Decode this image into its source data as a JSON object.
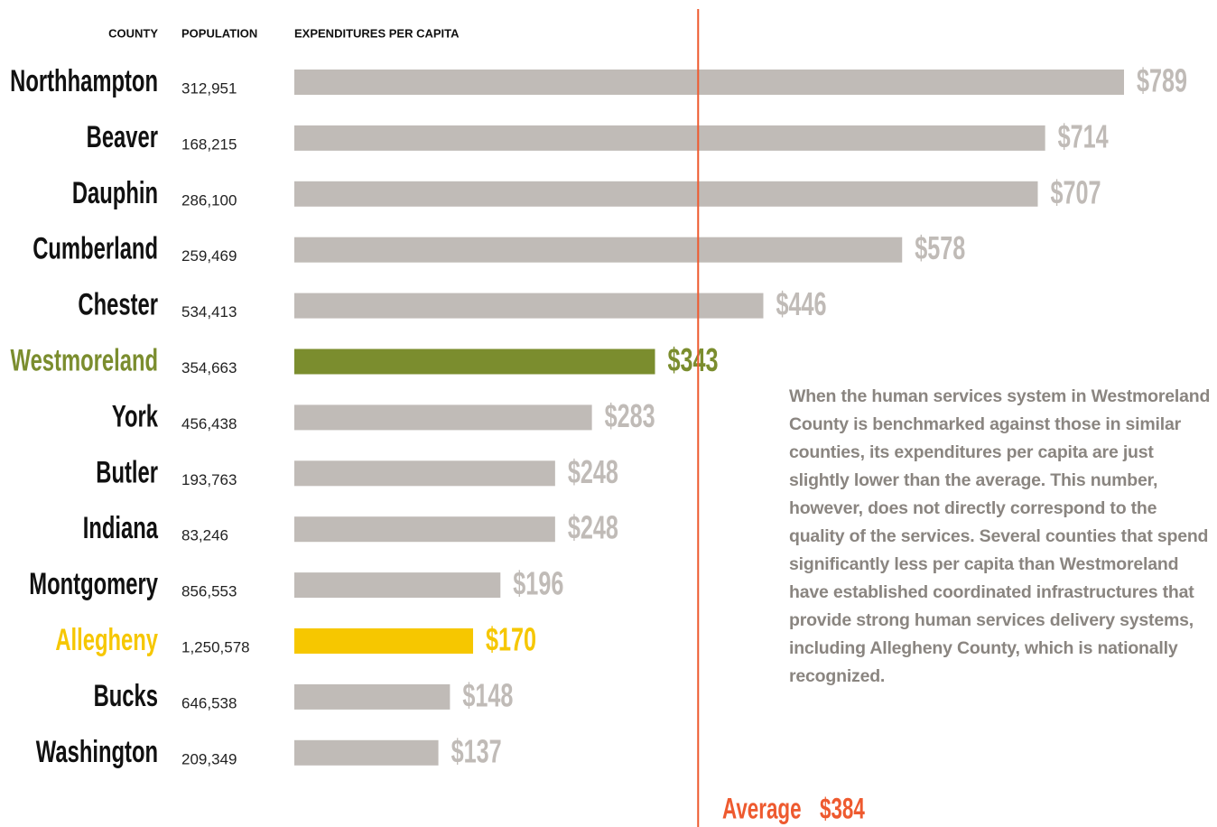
{
  "chart_data": {
    "type": "bar",
    "orientation": "horizontal",
    "column_headers": [
      "COUNTY",
      "POPULATION",
      "EXPENDITURES PER CAPITA"
    ],
    "categories": [
      "Northhampton",
      "Beaver",
      "Dauphin",
      "Cumberland",
      "Chester",
      "Westmoreland",
      "York",
      "Butler",
      "Indiana",
      "Montgomery",
      "Allegheny",
      "Bucks",
      "Washington"
    ],
    "population": [
      "312,951",
      "168,215",
      "286,100",
      "259,469",
      "534,413",
      "354,663",
      "456,438",
      "193,763",
      "83,246",
      "856,553",
      "1,250,578",
      "646,538",
      "209,349"
    ],
    "values": [
      789,
      714,
      707,
      578,
      446,
      343,
      283,
      248,
      248,
      196,
      170,
      148,
      137
    ],
    "value_labels": [
      "$789",
      "$714",
      "$707",
      "$578",
      "$446",
      "$343",
      "$283",
      "$248",
      "$248",
      "$196",
      "$170",
      "$148",
      "$137"
    ],
    "colors": [
      "#c0bbb7",
      "#c0bbb7",
      "#c0bbb7",
      "#c0bbb7",
      "#c0bbb7",
      "#7b8d2e",
      "#c0bbb7",
      "#c0bbb7",
      "#c0bbb7",
      "#c0bbb7",
      "#f6c700",
      "#c0bbb7",
      "#c0bbb7"
    ],
    "name_colors": [
      "#111111",
      "#111111",
      "#111111",
      "#111111",
      "#111111",
      "#7b8d2e",
      "#111111",
      "#111111",
      "#111111",
      "#111111",
      "#f6c700",
      "#111111",
      "#111111"
    ],
    "average": {
      "label": "Average",
      "value": 384,
      "value_label": "$384",
      "color": "#ee5a2f"
    },
    "annotation": "When the human services system in Westmoreland County is benchmarked against those in similar counties, its expenditures per capita are just slightly lower than the average. This number, however, does not directly correspond to the quality of the services. Several counties that spend significantly less per capita than Westmoreland have established coordinated infrastructures that provide strong human services delivery systems, including Allegheny County, which is nationally recognized."
  }
}
